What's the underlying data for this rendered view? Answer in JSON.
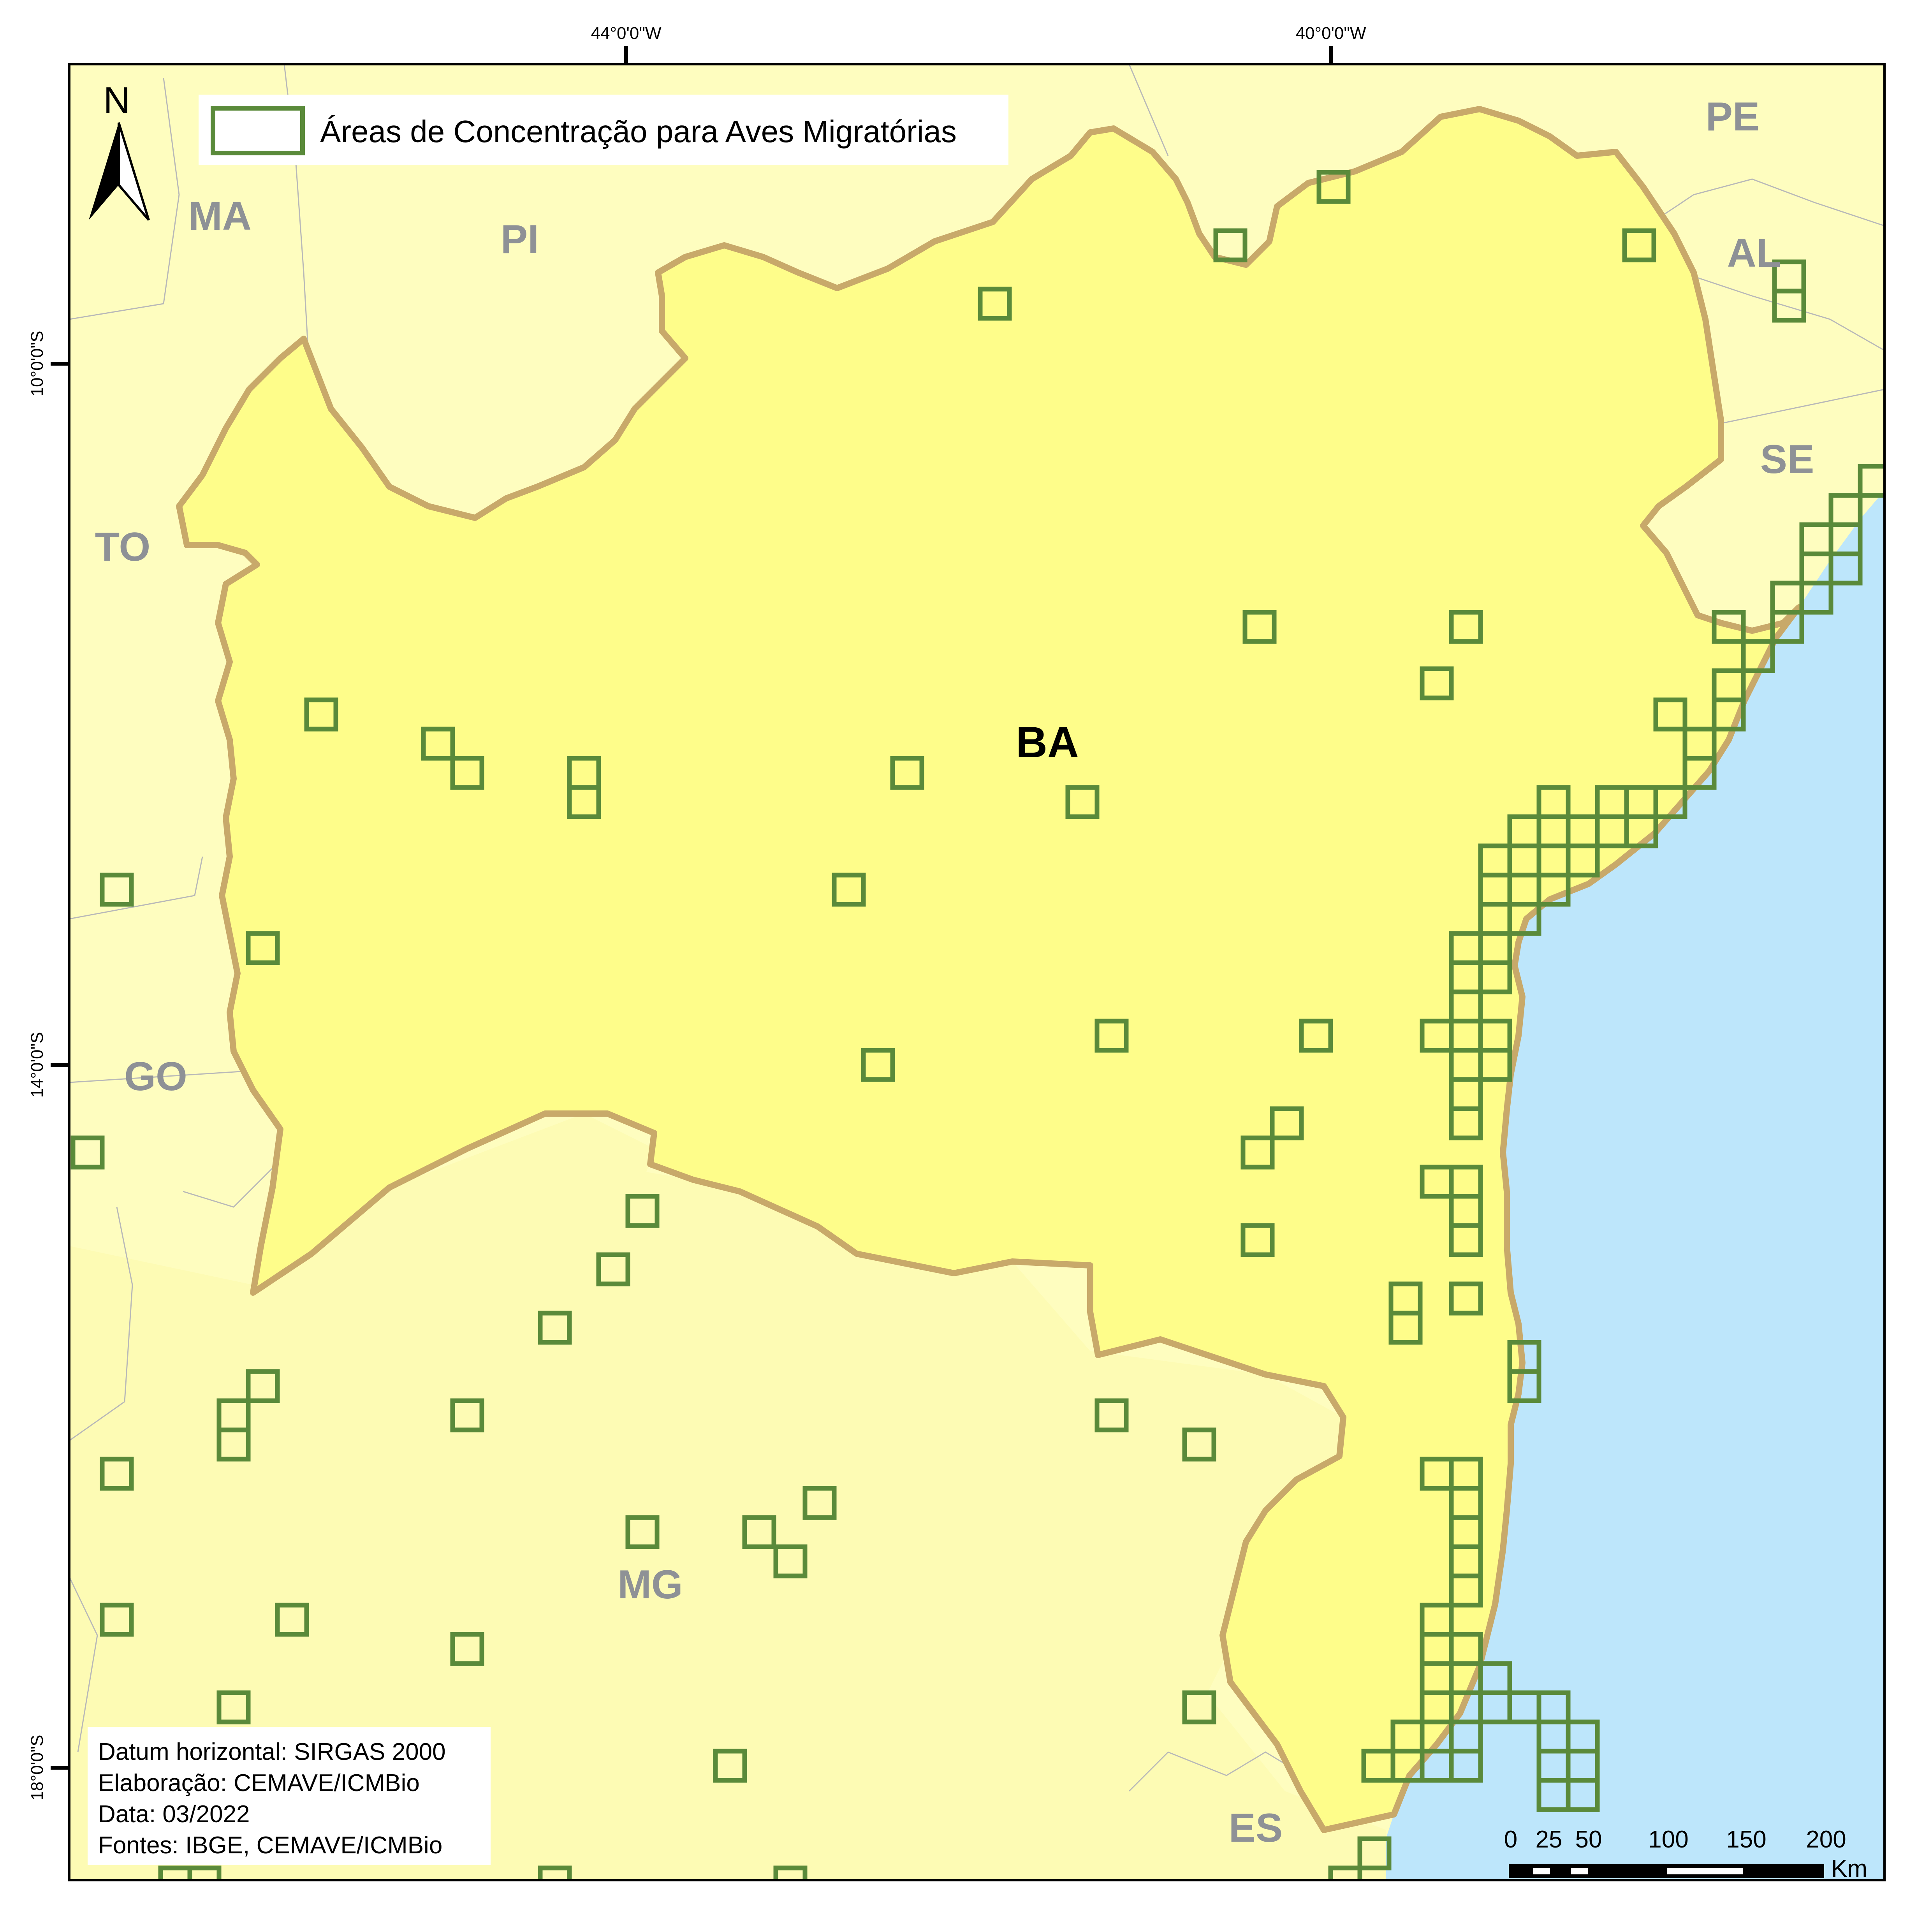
{
  "map": {
    "legend": {
      "label": "Áreas de Concentração para Aves Migratórias"
    },
    "north_arrow": {
      "label": "N"
    },
    "graticule": {
      "longitudes": [
        "44°0'0\"W",
        "40°0'0\"W"
      ],
      "latitudes": [
        "10°0'0\"S",
        "14°0'0\"S",
        "18°0'0\"S"
      ]
    },
    "states": {
      "main": "BA",
      "neighbors": [
        "MA",
        "PI",
        "PE",
        "AL",
        "SE",
        "TO",
        "GO",
        "MG",
        "ES"
      ]
    },
    "info": {
      "datum": "Datum horizontal: SIRGAS 2000",
      "elaboration": "Elaboração: CEMAVE/ICMBio",
      "date": "Data: 03/2022",
      "sources": "Fontes: IBGE, CEMAVE/ICMBio"
    },
    "scale_bar": {
      "ticks": [
        "0",
        "25",
        "50",
        "100",
        "150",
        "200"
      ],
      "unit": "Km"
    },
    "colors": {
      "background_states": "#fefdbf",
      "bahia": "#fefd8a",
      "ocean": "#bde6fb",
      "bahia_border": "#c8a96a",
      "grid_cells": "#5a8a3a",
      "state_label": "#8e9196"
    }
  }
}
